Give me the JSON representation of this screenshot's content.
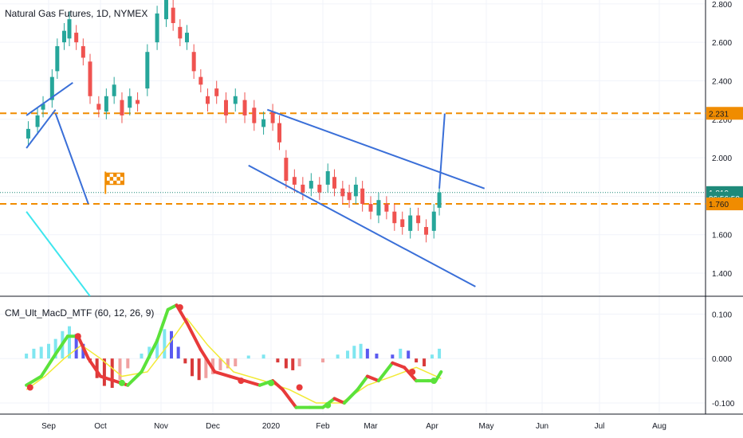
{
  "header": {
    "symbol_title": "Natural Gas Futures, 1D, NYMEX",
    "indicator_title": "CM_Ult_MacD_MTF (60, 12, 26, 9)"
  },
  "colors": {
    "up_candle": "#26a69a",
    "down_candle": "#ef5350",
    "trendline": "#3a6fd8",
    "support_line": "#f08c00",
    "cyan_line": "#3fe6ee",
    "price_tag": "#1f8a7a",
    "macd_up": "#5be23a",
    "macd_down": "#e83a3a",
    "signal": "#f2ea36",
    "hist_pos_strong": "#5a5af0",
    "hist_pos_weak": "#7fe6f0",
    "hist_neg_strong": "#d93a3a",
    "hist_neg_weak": "#f0a0a0"
  },
  "chart_data": [
    {
      "type": "candlestick",
      "title": "Natural Gas Futures, 1D, NYMEX",
      "x_ticks": [
        "Sep",
        "Oct",
        "Nov",
        "Dec",
        "2020",
        "Feb",
        "Mar",
        "Apr",
        "May",
        "Jun",
        "Jul",
        "Aug"
      ],
      "y_ticks": [
        "1.400",
        "1.600",
        "1.800",
        "2.000",
        "2.200",
        "2.400",
        "2.600",
        "2.800"
      ],
      "ylim": [
        1.28,
        2.82
      ],
      "price_tags": [
        {
          "label": "2.231",
          "value": 2.231,
          "style": "orange"
        },
        {
          "label": "1.819",
          "value": 1.819,
          "style": "teal"
        },
        {
          "label": "06:56:50",
          "value": 1.79,
          "style": "teal-countdown"
        },
        {
          "label": "1.760",
          "value": 1.76,
          "style": "orange"
        }
      ],
      "horizontal_lines": [
        {
          "value": 2.231,
          "style": "dashed",
          "color": "orange"
        },
        {
          "value": 1.76,
          "style": "dashed",
          "color": "orange"
        },
        {
          "value": 1.819,
          "style": "dotted",
          "color": "teal"
        }
      ],
      "trendlines": [
        {
          "from": [
            "Aug-20",
            2.22
          ],
          "to": [
            "Sep-15",
            2.39
          ]
        },
        {
          "from": [
            "Aug-20",
            2.05
          ],
          "to": [
            "Sep-05",
            2.25
          ]
        },
        {
          "from": [
            "Sep-05",
            2.23
          ],
          "to": [
            "Sep-24",
            1.76
          ]
        },
        {
          "from": [
            "Dec-30",
            2.25
          ],
          "to": [
            "Apr-30",
            1.84
          ]
        },
        {
          "from": [
            "Dec-20",
            1.96
          ],
          "to": [
            "Apr-25",
            1.33
          ]
        },
        {
          "from": [
            "Apr-05",
            1.84
          ],
          "to": [
            "Apr-08",
            2.23
          ]
        }
      ],
      "cyan_diagonal": {
        "from": [
          "Aug-20",
          1.72
        ],
        "to": [
          "Sep-25",
          1.28
        ]
      },
      "marker": {
        "type": "flag-icon",
        "date": "Oct-06",
        "value": 1.87
      },
      "series": [
        {
          "date": "Aug-21",
          "open": 2.1,
          "close": 2.15
        },
        {
          "date": "Aug-26",
          "open": 2.16,
          "close": 2.22
        },
        {
          "date": "Aug-29",
          "open": 2.25,
          "close": 2.28
        },
        {
          "date": "Sep-03",
          "open": 2.3,
          "close": 2.42
        },
        {
          "date": "Sep-06",
          "open": 2.45,
          "close": 2.58
        },
        {
          "date": "Sep-10",
          "open": 2.6,
          "close": 2.66
        },
        {
          "date": "Sep-13",
          "open": 2.62,
          "close": 2.72
        },
        {
          "date": "Sep-17",
          "open": 2.65,
          "close": 2.6
        },
        {
          "date": "Sep-21",
          "open": 2.58,
          "close": 2.52
        },
        {
          "date": "Sep-25",
          "open": 2.5,
          "close": 2.32
        },
        {
          "date": "Sep-30",
          "open": 2.28,
          "close": 2.25
        },
        {
          "date": "Oct-04",
          "open": 2.24,
          "close": 2.32
        },
        {
          "date": "Oct-08",
          "open": 2.32,
          "close": 2.38
        },
        {
          "date": "Oct-12",
          "open": 2.3,
          "close": 2.22
        },
        {
          "date": "Oct-16",
          "open": 2.26,
          "close": 2.32
        },
        {
          "date": "Oct-20",
          "open": 2.3,
          "close": 2.28
        },
        {
          "date": "Oct-25",
          "open": 2.36,
          "close": 2.55
        },
        {
          "date": "Oct-30",
          "open": 2.6,
          "close": 2.75
        },
        {
          "date": "Nov-04",
          "open": 2.72,
          "close": 2.82
        },
        {
          "date": "Nov-08",
          "open": 2.78,
          "close": 2.7
        },
        {
          "date": "Nov-12",
          "open": 2.68,
          "close": 2.62
        },
        {
          "date": "Nov-16",
          "open": 2.6,
          "close": 2.65
        },
        {
          "date": "Nov-20",
          "open": 2.55,
          "close": 2.45
        },
        {
          "date": "Nov-24",
          "open": 2.42,
          "close": 2.38
        },
        {
          "date": "Nov-28",
          "open": 2.32,
          "close": 2.28
        },
        {
          "date": "Dec-03",
          "open": 2.36,
          "close": 2.32
        },
        {
          "date": "Dec-08",
          "open": 2.3,
          "close": 2.22
        },
        {
          "date": "Dec-13",
          "open": 2.28,
          "close": 2.32
        },
        {
          "date": "Dec-18",
          "open": 2.3,
          "close": 2.22
        },
        {
          "date": "Dec-23",
          "open": 2.26,
          "close": 2.18
        },
        {
          "date": "Dec-28",
          "open": 2.16,
          "close": 2.2
        },
        {
          "date": "Jan-02",
          "open": 2.24,
          "close": 2.18
        },
        {
          "date": "Jan-06",
          "open": 2.18,
          "close": 2.08
        },
        {
          "date": "Jan-10",
          "open": 2.0,
          "close": 1.88
        },
        {
          "date": "Jan-15",
          "open": 1.9,
          "close": 1.86
        },
        {
          "date": "Jan-20",
          "open": 1.86,
          "close": 1.82
        },
        {
          "date": "Jan-25",
          "open": 1.84,
          "close": 1.88
        },
        {
          "date": "Jan-30",
          "open": 1.86,
          "close": 1.82
        },
        {
          "date": "Feb-04",
          "open": 1.86,
          "close": 1.93
        },
        {
          "date": "Feb-08",
          "open": 1.9,
          "close": 1.84
        },
        {
          "date": "Feb-13",
          "open": 1.84,
          "close": 1.8
        },
        {
          "date": "Feb-17",
          "open": 1.82,
          "close": 1.78
        },
        {
          "date": "Feb-21",
          "open": 1.8,
          "close": 1.86
        },
        {
          "date": "Feb-25",
          "open": 1.84,
          "close": 1.76
        },
        {
          "date": "Mar-01",
          "open": 1.76,
          "close": 1.72
        },
        {
          "date": "Mar-05",
          "open": 1.7,
          "close": 1.78
        },
        {
          "date": "Mar-09",
          "open": 1.76,
          "close": 1.72
        },
        {
          "date": "Mar-13",
          "open": 1.72,
          "close": 1.66
        },
        {
          "date": "Mar-17",
          "open": 1.68,
          "close": 1.64
        },
        {
          "date": "Mar-21",
          "open": 1.62,
          "close": 1.7
        },
        {
          "date": "Mar-25",
          "open": 1.7,
          "close": 1.66
        },
        {
          "date": "Mar-29",
          "open": 1.64,
          "close": 1.6
        },
        {
          "date": "Apr-02",
          "open": 1.62,
          "close": 1.72
        },
        {
          "date": "Apr-05",
          "open": 1.74,
          "close": 1.82
        }
      ]
    },
    {
      "type": "histogram+line",
      "title": "CM_Ult_MacD_MTF (60, 12, 26, 9)",
      "y_ticks": [
        "0.100",
        "0.000",
        "-0.100"
      ],
      "ylim": [
        -0.125,
        0.14
      ],
      "macd": [
        {
          "date": "Aug-20",
          "value": -0.06
        },
        {
          "date": "Aug-28",
          "value": -0.04
        },
        {
          "date": "Sep-05",
          "value": 0.01
        },
        {
          "date": "Sep-12",
          "value": 0.05
        },
        {
          "date": "Sep-18",
          "value": 0.05
        },
        {
          "date": "Sep-24",
          "value": 0.0
        },
        {
          "date": "Oct-01",
          "value": -0.04
        },
        {
          "date": "Oct-08",
          "value": -0.05
        },
        {
          "date": "Oct-15",
          "value": -0.06
        },
        {
          "date": "Oct-22",
          "value": -0.03
        },
        {
          "date": "Oct-30",
          "value": 0.04
        },
        {
          "date": "Nov-05",
          "value": 0.11
        },
        {
          "date": "Nov-10",
          "value": 0.12
        },
        {
          "date": "Nov-16",
          "value": 0.08
        },
        {
          "date": "Nov-24",
          "value": 0.02
        },
        {
          "date": "Dec-02",
          "value": -0.03
        },
        {
          "date": "Dec-10",
          "value": -0.04
        },
        {
          "date": "Dec-18",
          "value": -0.05
        },
        {
          "date": "Dec-26",
          "value": -0.06
        },
        {
          "date": "Jan-02",
          "value": -0.05
        },
        {
          "date": "Jan-08",
          "value": -0.07
        },
        {
          "date": "Jan-16",
          "value": -0.11
        },
        {
          "date": "Jan-24",
          "value": -0.11
        },
        {
          "date": "Feb-01",
          "value": -0.11
        },
        {
          "date": "Feb-08",
          "value": -0.09
        },
        {
          "date": "Feb-14",
          "value": -0.1
        },
        {
          "date": "Feb-22",
          "value": -0.07
        },
        {
          "date": "Feb-28",
          "value": -0.04
        },
        {
          "date": "Mar-05",
          "value": -0.05
        },
        {
          "date": "Mar-12",
          "value": -0.01
        },
        {
          "date": "Mar-18",
          "value": -0.02
        },
        {
          "date": "Mar-24",
          "value": -0.05
        },
        {
          "date": "Mar-30",
          "value": -0.05
        },
        {
          "date": "Apr-03",
          "value": -0.05
        },
        {
          "date": "Apr-06",
          "value": -0.03
        }
      ],
      "signal": [
        {
          "date": "Aug-20",
          "value": -0.07
        },
        {
          "date": "Aug-30",
          "value": -0.04
        },
        {
          "date": "Sep-10",
          "value": 0.0
        },
        {
          "date": "Sep-20",
          "value": 0.03
        },
        {
          "date": "Oct-01",
          "value": 0.0
        },
        {
          "date": "Oct-12",
          "value": -0.04
        },
        {
          "date": "Oct-25",
          "value": -0.03
        },
        {
          "date": "Nov-05",
          "value": 0.03
        },
        {
          "date": "Nov-16",
          "value": 0.09
        },
        {
          "date": "Nov-28",
          "value": 0.03
        },
        {
          "date": "Dec-12",
          "value": -0.03
        },
        {
          "date": "Dec-28",
          "value": -0.05
        },
        {
          "date": "Jan-12",
          "value": -0.07
        },
        {
          "date": "Jan-28",
          "value": -0.1
        },
        {
          "date": "Feb-12",
          "value": -0.1
        },
        {
          "date": "Feb-28",
          "value": -0.06
        },
        {
          "date": "Mar-12",
          "value": -0.04
        },
        {
          "date": "Mar-24",
          "value": -0.02
        },
        {
          "date": "Apr-06",
          "value": -0.045
        }
      ],
      "histogram": [
        {
          "date": "Aug-20",
          "value": 0.005
        },
        {
          "date": "Aug-24",
          "value": 0.01
        },
        {
          "date": "Aug-28",
          "value": 0.012
        },
        {
          "date": "Sep-01",
          "value": 0.015
        },
        {
          "date": "Sep-05",
          "value": 0.02
        },
        {
          "date": "Sep-09",
          "value": 0.028
        },
        {
          "date": "Sep-13",
          "value": 0.033
        },
        {
          "date": "Sep-17",
          "value": 0.025
        },
        {
          "date": "Sep-21",
          "value": 0.015
        },
        {
          "date": "Sep-25",
          "value": -0.004
        },
        {
          "date": "Sep-29",
          "value": -0.02
        },
        {
          "date": "Oct-03",
          "value": -0.028
        },
        {
          "date": "Oct-07",
          "value": -0.03
        },
        {
          "date": "Oct-11",
          "value": -0.022
        },
        {
          "date": "Oct-15",
          "value": -0.01
        },
        {
          "date": "Oct-22",
          "value": 0.005
        },
        {
          "date": "Oct-26",
          "value": 0.012
        },
        {
          "date": "Oct-30",
          "value": 0.02
        },
        {
          "date": "Nov-03",
          "value": 0.03
        },
        {
          "date": "Nov-07",
          "value": 0.028
        },
        {
          "date": "Nov-11",
          "value": 0.012
        },
        {
          "date": "Nov-15",
          "value": -0.005
        },
        {
          "date": "Nov-19",
          "value": -0.018
        },
        {
          "date": "Nov-23",
          "value": -0.022
        },
        {
          "date": "Nov-27",
          "value": -0.02
        },
        {
          "date": "Dec-01",
          "value": -0.016
        },
        {
          "date": "Dec-05",
          "value": -0.012
        },
        {
          "date": "Dec-09",
          "value": -0.01
        },
        {
          "date": "Dec-13",
          "value": -0.008
        },
        {
          "date": "Dec-20",
          "value": 0.003
        },
        {
          "date": "Dec-28",
          "value": 0.004
        },
        {
          "date": "Jan-05",
          "value": -0.004
        },
        {
          "date": "Jan-10",
          "value": -0.01
        },
        {
          "date": "Jan-14",
          "value": -0.012
        },
        {
          "date": "Jan-18",
          "value": -0.008
        },
        {
          "date": "Feb-01",
          "value": -0.004
        },
        {
          "date": "Feb-10",
          "value": 0.004
        },
        {
          "date": "Feb-16",
          "value": 0.008
        },
        {
          "date": "Feb-20",
          "value": 0.013
        },
        {
          "date": "Feb-24",
          "value": 0.015
        },
        {
          "date": "Feb-28",
          "value": 0.01
        },
        {
          "date": "Mar-04",
          "value": 0.005
        },
        {
          "date": "Mar-12",
          "value": 0.004
        },
        {
          "date": "Mar-16",
          "value": 0.01
        },
        {
          "date": "Mar-20",
          "value": 0.008
        },
        {
          "date": "Mar-24",
          "value": -0.004
        },
        {
          "date": "Mar-28",
          "value": -0.008
        },
        {
          "date": "Apr-01",
          "value": 0.004
        },
        {
          "date": "Apr-05",
          "value": 0.01
        }
      ],
      "cross_dots": [
        {
          "date": "Aug-22",
          "value": -0.065,
          "color": "red"
        },
        {
          "date": "Sep-18",
          "value": 0.05,
          "color": "red"
        },
        {
          "date": "Oct-12",
          "value": -0.055,
          "color": "green"
        },
        {
          "date": "Nov-12",
          "value": 0.115,
          "color": "red"
        },
        {
          "date": "Dec-16",
          "value": -0.05,
          "color": "red"
        },
        {
          "date": "Jan-01",
          "value": -0.055,
          "color": "green"
        },
        {
          "date": "Jan-18",
          "value": -0.065,
          "color": "red"
        },
        {
          "date": "Feb-04",
          "value": -0.105,
          "color": "green"
        },
        {
          "date": "Mar-22",
          "value": -0.03,
          "color": "red"
        },
        {
          "date": "Apr-02",
          "value": -0.05,
          "color": "green"
        }
      ]
    }
  ]
}
